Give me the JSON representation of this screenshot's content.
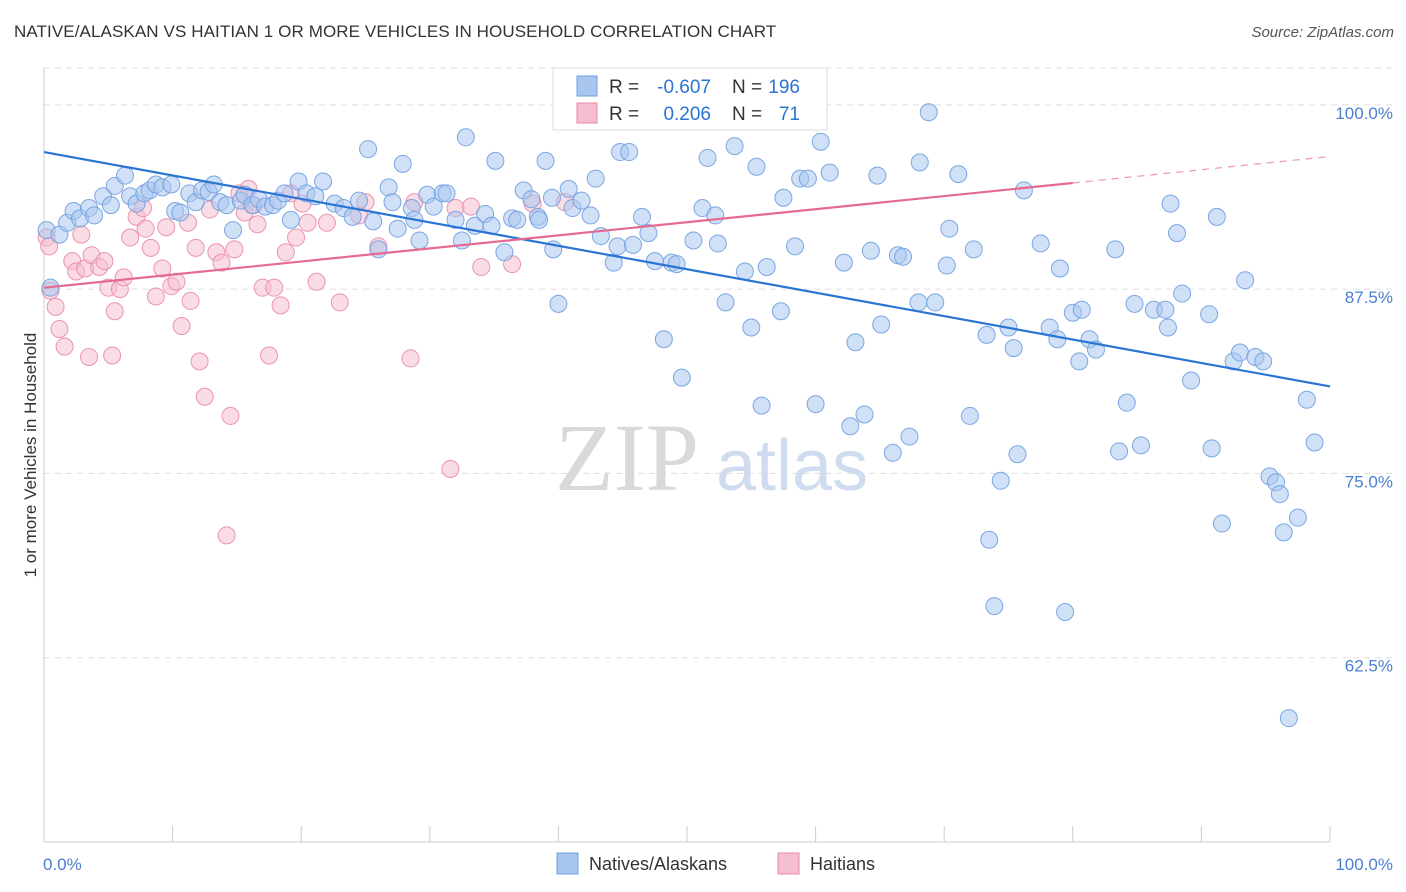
{
  "title": "NATIVE/ALASKAN VS HAITIAN 1 OR MORE VEHICLES IN HOUSEHOLD CORRELATION CHART",
  "source": "Source: ZipAtlas.com",
  "watermark": {
    "zip": "ZIP",
    "atlas": "atlas"
  },
  "colors": {
    "blue_fill": "#a9c6ef",
    "blue_stroke": "#6f9fe0",
    "blue_line": "#2a74d4",
    "pink_fill": "#f5bfd0",
    "pink_stroke": "#e98aaa",
    "pink_line": "#e46a94",
    "grid": "#dddddd",
    "tick_text": "#4a7fd4"
  },
  "legend": {
    "rows": [
      {
        "r_label": "R =",
        "r_value": "-0.607",
        "n_label": "N =",
        "n_value": "196"
      },
      {
        "r_label": "R =",
        "r_value": "0.206",
        "n_label": "N =",
        "n_value": "71"
      }
    ]
  },
  "bottom_legend": [
    "Natives/Alaskans",
    "Haitians"
  ],
  "chart_data": {
    "type": "scatter",
    "title": "NATIVE/ALASKAN VS HAITIAN 1 OR MORE VEHICLES IN HOUSEHOLD CORRELATION CHART",
    "xlabel": "",
    "ylabel": "1 or more Vehicles in Household",
    "xlim": [
      0,
      100
    ],
    "ylim": [
      50,
      102.5
    ],
    "x_tick_labels": [
      "0.0%",
      "100.0%"
    ],
    "y_ticks": [
      62.5,
      75.0,
      87.5,
      100.0
    ],
    "y_tick_labels": [
      "62.5%",
      "75.0%",
      "87.5%",
      "100.0%"
    ],
    "grid": true,
    "legend_position": "top-center",
    "series": [
      {
        "name": "Natives/Alaskans",
        "r": -0.607,
        "n": 196,
        "trend": {
          "x": [
            0,
            100
          ],
          "y": [
            96.8,
            80.9
          ]
        },
        "points": [
          [
            0.2,
            91.5
          ],
          [
            0.5,
            87.6
          ],
          [
            1.2,
            91.2
          ],
          [
            1.8,
            92.0
          ],
          [
            2.3,
            92.8
          ],
          [
            2.8,
            92.3
          ],
          [
            3.5,
            93.0
          ],
          [
            3.9,
            92.5
          ],
          [
            4.6,
            93.8
          ],
          [
            5.2,
            93.2
          ],
          [
            5.5,
            94.5
          ],
          [
            6.3,
            95.2
          ],
          [
            6.7,
            93.8
          ],
          [
            7.2,
            93.3
          ],
          [
            7.8,
            94.0
          ],
          [
            8.2,
            94.2
          ],
          [
            8.7,
            94.6
          ],
          [
            9.2,
            94.4
          ],
          [
            9.9,
            94.6
          ],
          [
            10.2,
            92.8
          ],
          [
            10.6,
            92.7
          ],
          [
            11.3,
            94.0
          ],
          [
            11.8,
            93.4
          ],
          [
            12.3,
            94.2
          ],
          [
            12.8,
            94.1
          ],
          [
            13.2,
            94.6
          ],
          [
            13.7,
            93.4
          ],
          [
            14.2,
            93.2
          ],
          [
            14.7,
            91.5
          ],
          [
            15.3,
            93.5
          ],
          [
            15.6,
            93.9
          ],
          [
            16.2,
            93.2
          ],
          [
            16.7,
            93.6
          ],
          [
            17.2,
            93.1
          ],
          [
            17.8,
            93.2
          ],
          [
            18.2,
            93.5
          ],
          [
            18.7,
            94.0
          ],
          [
            19.2,
            92.2
          ],
          [
            19.8,
            94.8
          ],
          [
            20.4,
            94.0
          ],
          [
            21.1,
            93.8
          ],
          [
            21.7,
            94.8
          ],
          [
            22.6,
            93.3
          ],
          [
            23.3,
            93.0
          ],
          [
            24.0,
            92.4
          ],
          [
            24.5,
            93.5
          ],
          [
            25.2,
            97.0
          ],
          [
            25.6,
            92.1
          ],
          [
            26.0,
            90.2
          ],
          [
            26.8,
            94.4
          ],
          [
            27.1,
            93.4
          ],
          [
            27.5,
            91.6
          ],
          [
            27.9,
            96.0
          ],
          [
            28.6,
            93.0
          ],
          [
            28.8,
            92.2
          ],
          [
            29.2,
            90.8
          ],
          [
            29.8,
            93.9
          ],
          [
            30.3,
            93.1
          ],
          [
            31.0,
            94.0
          ],
          [
            31.3,
            94.0
          ],
          [
            32.0,
            92.2
          ],
          [
            32.5,
            90.8
          ],
          [
            32.8,
            97.8
          ],
          [
            33.5,
            91.8
          ],
          [
            34.3,
            92.6
          ],
          [
            34.8,
            91.8
          ],
          [
            35.1,
            96.2
          ],
          [
            35.8,
            90.0
          ],
          [
            36.4,
            92.3
          ],
          [
            36.8,
            92.2
          ],
          [
            37.3,
            94.2
          ],
          [
            37.9,
            93.6
          ],
          [
            38.4,
            92.4
          ],
          [
            38.5,
            92.2
          ],
          [
            39.0,
            96.2
          ],
          [
            39.5,
            93.7
          ],
          [
            39.6,
            90.2
          ],
          [
            40.0,
            86.5
          ],
          [
            40.8,
            94.3
          ],
          [
            41.1,
            93.0
          ],
          [
            41.8,
            93.5
          ],
          [
            42.5,
            92.5
          ],
          [
            42.9,
            95.0
          ],
          [
            43.3,
            91.1
          ],
          [
            44.3,
            89.3
          ],
          [
            44.6,
            90.4
          ],
          [
            44.8,
            96.8
          ],
          [
            45.5,
            96.8
          ],
          [
            45.8,
            90.5
          ],
          [
            46.5,
            92.4
          ],
          [
            47.0,
            91.3
          ],
          [
            47.5,
            89.4
          ],
          [
            48.2,
            84.1
          ],
          [
            48.8,
            89.3
          ],
          [
            49.2,
            89.2
          ],
          [
            49.6,
            81.5
          ],
          [
            50.5,
            90.8
          ],
          [
            51.2,
            93.0
          ],
          [
            51.6,
            96.4
          ],
          [
            52.2,
            92.5
          ],
          [
            52.4,
            90.6
          ],
          [
            53.0,
            86.6
          ],
          [
            53.7,
            97.2
          ],
          [
            54.5,
            88.7
          ],
          [
            55.0,
            84.9
          ],
          [
            55.4,
            95.8
          ],
          [
            55.8,
            79.6
          ],
          [
            56.2,
            89.0
          ],
          [
            57.3,
            86.0
          ],
          [
            57.5,
            93.7
          ],
          [
            58.4,
            90.4
          ],
          [
            58.8,
            95.0
          ],
          [
            59.4,
            95.0
          ],
          [
            60.0,
            79.7
          ],
          [
            60.4,
            97.5
          ],
          [
            61.1,
            95.4
          ],
          [
            62.2,
            89.3
          ],
          [
            62.7,
            78.2
          ],
          [
            63.1,
            83.9
          ],
          [
            63.8,
            79.0
          ],
          [
            64.3,
            90.1
          ],
          [
            64.8,
            95.2
          ],
          [
            65.1,
            85.1
          ],
          [
            66.0,
            76.4
          ],
          [
            66.4,
            89.8
          ],
          [
            66.8,
            89.7
          ],
          [
            67.3,
            77.5
          ],
          [
            68.0,
            86.6
          ],
          [
            68.1,
            96.1
          ],
          [
            68.8,
            99.5
          ],
          [
            69.3,
            86.6
          ],
          [
            70.2,
            89.1
          ],
          [
            70.4,
            91.6
          ],
          [
            71.1,
            95.3
          ],
          [
            72.0,
            78.9
          ],
          [
            72.3,
            90.2
          ],
          [
            73.3,
            84.4
          ],
          [
            73.5,
            70.5
          ],
          [
            73.9,
            66.0
          ],
          [
            74.4,
            74.5
          ],
          [
            75.0,
            84.9
          ],
          [
            75.4,
            83.5
          ],
          [
            75.7,
            76.3
          ],
          [
            76.2,
            94.2
          ],
          [
            77.5,
            90.6
          ],
          [
            78.2,
            84.9
          ],
          [
            78.8,
            84.1
          ],
          [
            79.0,
            88.9
          ],
          [
            79.4,
            65.6
          ],
          [
            80.0,
            85.9
          ],
          [
            80.5,
            82.6
          ],
          [
            80.7,
            86.1
          ],
          [
            81.3,
            84.1
          ],
          [
            81.8,
            83.4
          ],
          [
            83.3,
            90.2
          ],
          [
            83.6,
            76.5
          ],
          [
            84.2,
            79.8
          ],
          [
            84.8,
            86.5
          ],
          [
            85.3,
            76.9
          ],
          [
            86.3,
            86.1
          ],
          [
            87.2,
            86.1
          ],
          [
            87.4,
            84.9
          ],
          [
            87.6,
            93.3
          ],
          [
            88.1,
            91.3
          ],
          [
            88.5,
            87.2
          ],
          [
            89.2,
            81.3
          ],
          [
            90.6,
            85.8
          ],
          [
            90.8,
            76.7
          ],
          [
            91.2,
            92.4
          ],
          [
            91.6,
            71.6
          ],
          [
            92.5,
            82.6
          ],
          [
            93.0,
            83.2
          ],
          [
            93.4,
            88.1
          ],
          [
            94.2,
            82.9
          ],
          [
            94.8,
            82.6
          ],
          [
            95.3,
            74.8
          ],
          [
            95.8,
            74.4
          ],
          [
            96.1,
            73.6
          ],
          [
            96.4,
            71.0
          ],
          [
            96.8,
            58.4
          ],
          [
            97.5,
            72.0
          ],
          [
            98.2,
            80.0
          ],
          [
            98.8,
            77.1
          ]
        ]
      },
      {
        "name": "Haitians",
        "r": 0.206,
        "n": 71,
        "trend": {
          "x": [
            0,
            80
          ],
          "y": [
            87.6,
            94.7
          ],
          "dashed_to": {
            "x": 100,
            "y": 96.5
          }
        },
        "points": [
          [
            0.2,
            91.0
          ],
          [
            0.4,
            90.4
          ],
          [
            0.5,
            87.4
          ],
          [
            0.9,
            86.3
          ],
          [
            1.2,
            84.8
          ],
          [
            1.6,
            83.6
          ],
          [
            2.2,
            89.4
          ],
          [
            2.5,
            88.7
          ],
          [
            2.9,
            91.2
          ],
          [
            3.2,
            88.9
          ],
          [
            3.5,
            82.9
          ],
          [
            3.7,
            89.8
          ],
          [
            4.3,
            89.0
          ],
          [
            4.7,
            89.4
          ],
          [
            5.0,
            87.6
          ],
          [
            5.3,
            83.0
          ],
          [
            5.5,
            86.0
          ],
          [
            5.9,
            87.5
          ],
          [
            6.2,
            88.3
          ],
          [
            6.7,
            91.0
          ],
          [
            7.2,
            92.4
          ],
          [
            7.7,
            93.0
          ],
          [
            7.9,
            91.6
          ],
          [
            8.3,
            90.3
          ],
          [
            8.7,
            87.0
          ],
          [
            9.2,
            88.9
          ],
          [
            9.5,
            91.7
          ],
          [
            9.9,
            87.7
          ],
          [
            10.3,
            88.0
          ],
          [
            10.7,
            85.0
          ],
          [
            11.2,
            92.0
          ],
          [
            11.4,
            86.7
          ],
          [
            11.8,
            90.3
          ],
          [
            12.1,
            82.6
          ],
          [
            12.5,
            80.2
          ],
          [
            12.9,
            92.9
          ],
          [
            13.4,
            90.0
          ],
          [
            13.8,
            89.3
          ],
          [
            14.2,
            70.8
          ],
          [
            14.5,
            78.9
          ],
          [
            14.8,
            90.2
          ],
          [
            15.2,
            94.0
          ],
          [
            15.6,
            92.7
          ],
          [
            15.9,
            94.3
          ],
          [
            16.3,
            93.2
          ],
          [
            16.6,
            91.9
          ],
          [
            17.0,
            87.6
          ],
          [
            17.5,
            83.0
          ],
          [
            17.9,
            87.6
          ],
          [
            18.4,
            86.4
          ],
          [
            18.8,
            90.0
          ],
          [
            19.2,
            94.0
          ],
          [
            19.6,
            91.0
          ],
          [
            20.1,
            93.3
          ],
          [
            20.5,
            92.0
          ],
          [
            21.2,
            88.0
          ],
          [
            22.0,
            92.0
          ],
          [
            23.0,
            86.6
          ],
          [
            24.5,
            92.5
          ],
          [
            25.0,
            93.4
          ],
          [
            26.0,
            90.4
          ],
          [
            28.5,
            82.8
          ],
          [
            28.8,
            93.4
          ],
          [
            31.6,
            75.3
          ],
          [
            32.0,
            93.0
          ],
          [
            33.2,
            93.1
          ],
          [
            34.0,
            89.0
          ],
          [
            36.4,
            89.2
          ],
          [
            38.0,
            93.3
          ],
          [
            40.5,
            93.4
          ],
          [
            47.5,
            100.6
          ]
        ]
      }
    ]
  }
}
